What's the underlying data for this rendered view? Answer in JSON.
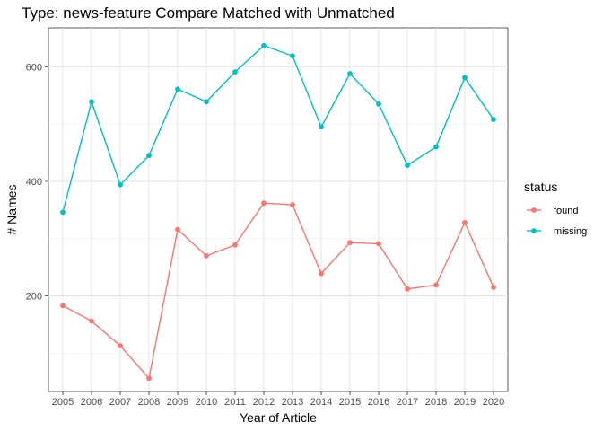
{
  "chart_data": {
    "type": "line",
    "title": "Type: news-feature Compare Matched with Unmatched",
    "xlabel": "Year of Article",
    "ylabel": "# Names",
    "x": [
      2005,
      2006,
      2007,
      2008,
      2009,
      2010,
      2011,
      2012,
      2013,
      2014,
      2015,
      2016,
      2017,
      2018,
      2019,
      2020
    ],
    "ylim": [
      33,
      668
    ],
    "yticks": [
      200,
      400,
      600
    ],
    "grid": true,
    "legend": {
      "title": "status",
      "placement": "right"
    },
    "series": [
      {
        "name": "found",
        "color": "#f8766d",
        "values": [
          183,
          156,
          113,
          56,
          316,
          270,
          289,
          362,
          359,
          239,
          293,
          291,
          212,
          219,
          328,
          215
        ]
      },
      {
        "name": "missing",
        "color": "#00bfc4",
        "values": [
          346,
          539,
          394,
          445,
          561,
          539,
          591,
          637,
          619,
          495,
          588,
          535,
          428,
          460,
          581,
          508
        ]
      }
    ]
  }
}
